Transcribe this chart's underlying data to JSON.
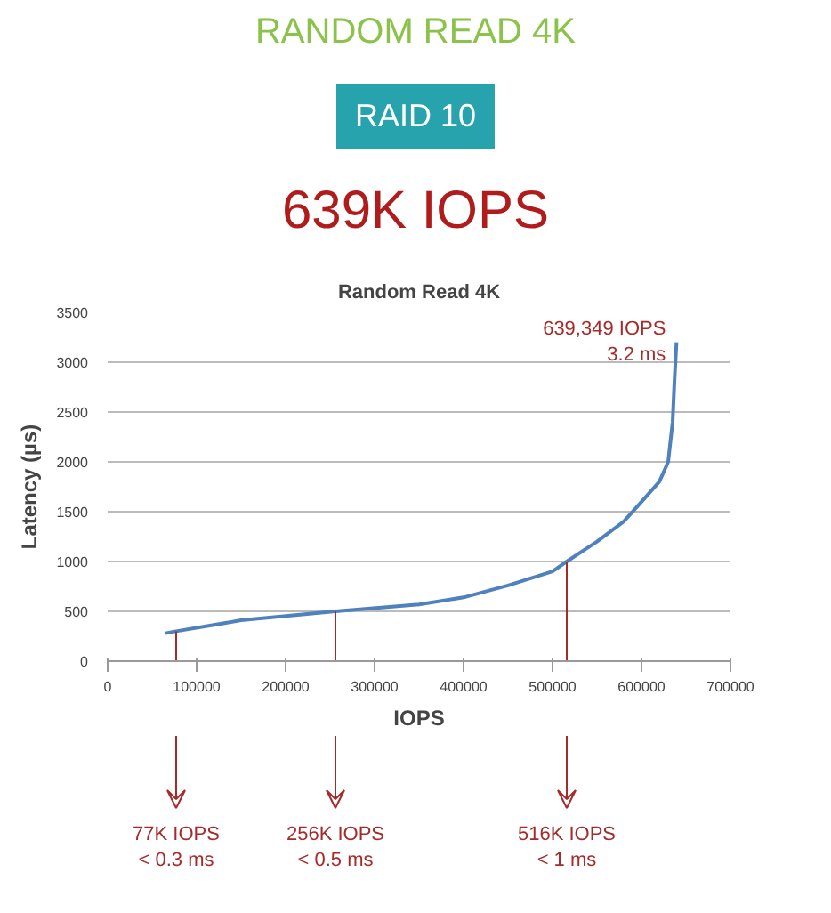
{
  "chart_data": {
    "type": "line",
    "title": "Random Read 4K",
    "xlabel": "IOPS",
    "ylabel": "Latency (µs)",
    "x": [
      65000,
      77000,
      150000,
      256000,
      350000,
      400000,
      450000,
      500000,
      516000,
      550000,
      580000,
      600000,
      620000,
      630000,
      635000,
      637000,
      639349
    ],
    "series": [
      {
        "color": "#4f81bd",
        "values": [
          280,
          300,
          410,
          500,
          570,
          640,
          760,
          900,
          1000,
          1200,
          1400,
          1600,
          1800,
          2000,
          2400,
          2800,
          3200
        ]
      }
    ],
    "xlim": [
      0,
      700000
    ],
    "xticks": [
      0,
      100000,
      200000,
      300000,
      400000,
      500000,
      600000,
      700000
    ],
    "ylim": [
      0,
      3500
    ],
    "yticks": [
      0,
      500,
      1000,
      1500,
      2000,
      2500,
      3000,
      3500
    ],
    "grid": "y",
    "marker": "none",
    "line_style": "solid",
    "ref_lines": [
      {
        "axis": "x",
        "value": 77000,
        "label": "77K IOPS\n< 0.3 ms",
        "color": "#a52a2a"
      },
      {
        "axis": "x",
        "value": 256000,
        "label": "256K IOPS\n< 0.5 ms",
        "color": "#a52a2a"
      },
      {
        "axis": "x",
        "value": 516000,
        "label": "516K IOPS\n< 1 ms",
        "color": "#a52a2a"
      }
    ],
    "annotations": [
      "RANDOM READ 4K",
      "RAID 10",
      "639K IOPS",
      {
        "text": "639,349 IOPS\n3.2 ms",
        "x": 639349,
        "y": 3200
      }
    ]
  }
}
